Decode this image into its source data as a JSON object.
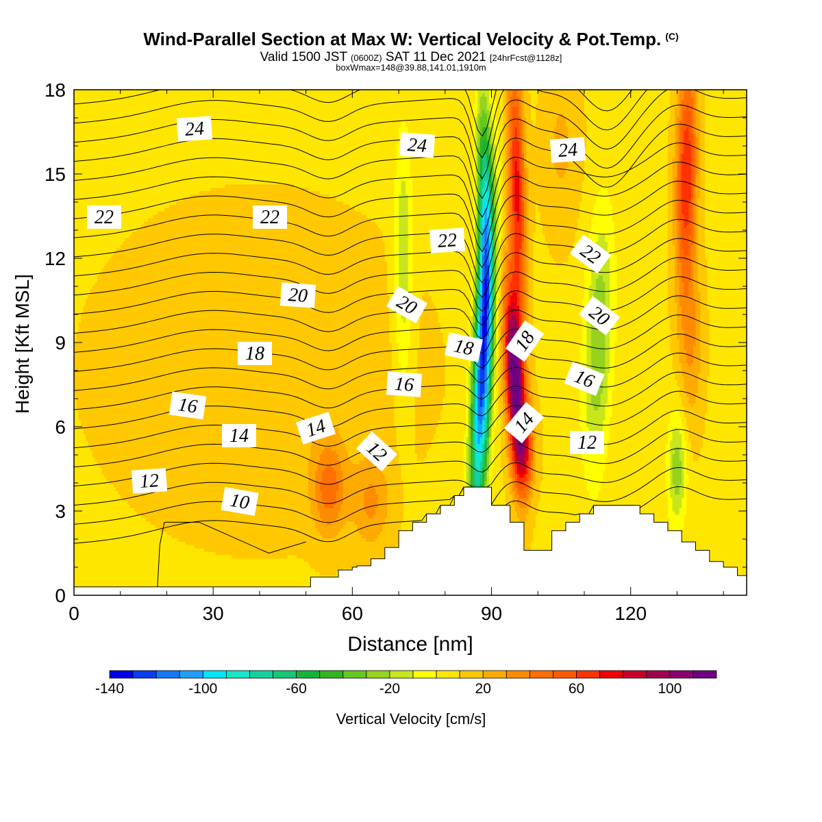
{
  "header": {
    "title": "Wind-Parallel Section at Max W: Vertical Velocity & Pot.Temp.",
    "copyright": "(C)",
    "valid_main": "Valid 1500 JST",
    "valid_utc": "(0600Z)",
    "valid_date": "SAT 11 Dec 2021",
    "forecast": "[24hrFcst@1128z]",
    "box_info": "boxWmax=148@39.88,141.01,1910m"
  },
  "chart_data": {
    "type": "heatmap",
    "xlabel": "Distance [nm]",
    "ylabel": "Height [Kft MSL]",
    "xlim": [
      0,
      145
    ],
    "ylim": [
      0,
      18
    ],
    "x_ticks": [
      "0",
      "30",
      "60",
      "90",
      "120"
    ],
    "x_tick_values": [
      0,
      30,
      60,
      90,
      120
    ],
    "y_ticks": [
      "0",
      "3",
      "6",
      "9",
      "12",
      "15",
      "18"
    ],
    "y_tick_values": [
      0,
      3,
      6,
      9,
      12,
      15,
      18
    ],
    "colorbar": {
      "label": "Vertical Velocity [cm/s]",
      "min": -140,
      "max": 120,
      "step": 10,
      "tick_labels": [
        "-140",
        "-100",
        "-60",
        "-20",
        "20",
        "60",
        "100"
      ],
      "tick_values": [
        -140,
        -100,
        -60,
        -20,
        20,
        60,
        100
      ],
      "colors": [
        "#0000e6",
        "#0a3cf0",
        "#1478f5",
        "#1ea0ff",
        "#00e6ff",
        "#14e6c8",
        "#14d2a0",
        "#14c878",
        "#14b43c",
        "#32b41e",
        "#64c81e",
        "#96d21e",
        "#c8e61e",
        "#ffff00",
        "#ffe600",
        "#ffc800",
        "#ffaa00",
        "#ff8c00",
        "#ff6e00",
        "#ff5a00",
        "#ff3200",
        "#f00000",
        "#c80028",
        "#a00050",
        "#8c006e",
        "#6e0082"
      ]
    },
    "terrain": [
      {
        "x": 0,
        "h": 0.3
      },
      {
        "x": 51,
        "h": 0.3
      },
      {
        "x": 51,
        "h": 0.65
      },
      {
        "x": 57,
        "h": 0.65
      },
      {
        "x": 57,
        "h": 0.9
      },
      {
        "x": 60,
        "h": 0.9
      },
      {
        "x": 60,
        "h": 1.0
      },
      {
        "x": 61,
        "h": 1.0
      },
      {
        "x": 61,
        "h": 1.0
      },
      {
        "x": 61,
        "h": 1.05
      },
      {
        "x": 64,
        "h": 1.05
      },
      {
        "x": 64,
        "h": 1.3
      },
      {
        "x": 67,
        "h": 1.3
      },
      {
        "x": 67,
        "h": 1.7
      },
      {
        "x": 70,
        "h": 1.7
      },
      {
        "x": 70,
        "h": 2.3
      },
      {
        "x": 73,
        "h": 2.3
      },
      {
        "x": 73,
        "h": 2.6
      },
      {
        "x": 76,
        "h": 2.6
      },
      {
        "x": 76,
        "h": 2.9
      },
      {
        "x": 79,
        "h": 2.9
      },
      {
        "x": 79,
        "h": 3.2
      },
      {
        "x": 82,
        "h": 3.2
      },
      {
        "x": 82,
        "h": 3.55
      },
      {
        "x": 84,
        "h": 3.55
      },
      {
        "x": 84,
        "h": 3.85
      },
      {
        "x": 90,
        "h": 3.85
      },
      {
        "x": 90,
        "h": 3.2
      },
      {
        "x": 94,
        "h": 3.2
      },
      {
        "x": 94,
        "h": 2.6
      },
      {
        "x": 97,
        "h": 2.6
      },
      {
        "x": 97,
        "h": 1.6
      },
      {
        "x": 103,
        "h": 1.6
      },
      {
        "x": 103,
        "h": 2.3
      },
      {
        "x": 106,
        "h": 2.3
      },
      {
        "x": 106,
        "h": 2.6
      },
      {
        "x": 109,
        "h": 2.6
      },
      {
        "x": 109,
        "h": 2.9
      },
      {
        "x": 112,
        "h": 2.9
      },
      {
        "x": 112,
        "h": 3.2
      },
      {
        "x": 122,
        "h": 3.2
      },
      {
        "x": 122,
        "h": 2.9
      },
      {
        "x": 125,
        "h": 2.9
      },
      {
        "x": 125,
        "h": 2.6
      },
      {
        "x": 128,
        "h": 2.6
      },
      {
        "x": 128,
        "h": 2.3
      },
      {
        "x": 131,
        "h": 2.3
      },
      {
        "x": 131,
        "h": 1.9
      },
      {
        "x": 134,
        "h": 1.9
      },
      {
        "x": 134,
        "h": 1.6
      },
      {
        "x": 137,
        "h": 1.6
      },
      {
        "x": 137,
        "h": 1.2
      },
      {
        "x": 140,
        "h": 1.2
      },
      {
        "x": 140,
        "h": 1.0
      },
      {
        "x": 143,
        "h": 1.0
      },
      {
        "x": 143,
        "h": 0.7
      },
      {
        "x": 145,
        "h": 0.7
      }
    ],
    "w_field": [
      {
        "x": 88,
        "y": 8.0,
        "sx": 2.0,
        "sy": 5.5,
        "amp": -135,
        "tilt": 0.25
      },
      {
        "x": 88.5,
        "y": 14.0,
        "sx": 1.6,
        "sy": 4.0,
        "amp": -70,
        "tilt": -0.1
      },
      {
        "x": 95,
        "y": 7.8,
        "sx": 2.0,
        "sy": 3.2,
        "amp": 115,
        "tilt": -0.3
      },
      {
        "x": 95.5,
        "y": 14.5,
        "sx": 1.8,
        "sy": 4.5,
        "amp": 65,
        "tilt": -0.15
      },
      {
        "x": 97,
        "y": 5.2,
        "sx": 2.2,
        "sy": 1.6,
        "amp": 50,
        "tilt": 0
      },
      {
        "x": 132,
        "y": 15.0,
        "sx": 2.2,
        "sy": 4.0,
        "amp": 62,
        "tilt": 0.1
      },
      {
        "x": 133,
        "y": 9.0,
        "sx": 2.5,
        "sy": 3.0,
        "amp": 22,
        "tilt": 0
      },
      {
        "x": 55,
        "y": 3.8,
        "sx": 3.5,
        "sy": 1.6,
        "amp": 35,
        "tilt": 0
      },
      {
        "x": 64,
        "y": 3.3,
        "sx": 4.0,
        "sy": 1.6,
        "amp": 22,
        "tilt": 0
      },
      {
        "x": 113,
        "y": 9.0,
        "sx": 3.0,
        "sy": 4.5,
        "amp": -38,
        "tilt": 0.2
      },
      {
        "x": 130,
        "y": 4.5,
        "sx": 2.0,
        "sy": 2.0,
        "amp": -35,
        "tilt": 0
      },
      {
        "x": 71,
        "y": 12.0,
        "sx": 2.0,
        "sy": 4.5,
        "amp": -28,
        "tilt": 0
      },
      {
        "x": 40,
        "y": 8.0,
        "sx": 30.0,
        "sy": 5.0,
        "amp": 12,
        "tilt": 0
      },
      {
        "x": 105,
        "y": 16.0,
        "sx": 4.0,
        "sy": 3.0,
        "amp": 14,
        "tilt": 0
      }
    ],
    "theta_labels": [
      "10",
      "12",
      "12",
      "12",
      "14",
      "14",
      "14",
      "16",
      "16",
      "16",
      "18",
      "18",
      "18",
      "20",
      "20",
      "20",
      "22",
      "22",
      "22",
      "22",
      "24",
      "24",
      "24"
    ],
    "grid": false
  }
}
